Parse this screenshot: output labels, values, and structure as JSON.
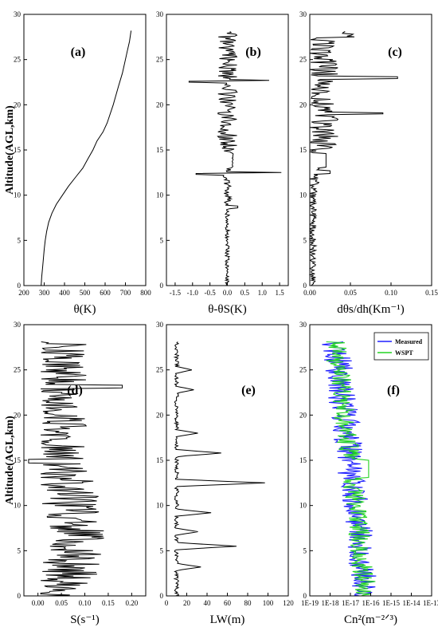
{
  "figure": {
    "y_axis_label": "Altitude(AGL,km)"
  },
  "chart_data": [
    {
      "type": "line",
      "panel_label": "(a)",
      "xlabel": "θ(K)",
      "ylabel": "Altitude(AGL,km)",
      "xlim": [
        200,
        800
      ],
      "ylim": [
        0,
        30
      ],
      "xticks": [
        200,
        300,
        400,
        500,
        600,
        700,
        800
      ],
      "xtick_labels": [
        "200",
        "300",
        "400",
        "500",
        "600",
        "700",
        "800"
      ],
      "yticks": [
        0,
        5,
        10,
        15,
        20,
        25,
        30
      ],
      "series": [
        {
          "color": "#000000",
          "x": [
            285,
            288,
            292,
            296,
            300,
            305,
            312,
            322,
            338,
            360,
            390,
            420,
            455,
            490,
            515,
            540,
            560,
            590,
            610,
            640,
            665,
            685,
            700,
            710,
            720,
            728
          ],
          "y": [
            0,
            1,
            2,
            3,
            4,
            5,
            6,
            7,
            8,
            9,
            10,
            11,
            12,
            13,
            14,
            15,
            16,
            17,
            18,
            20,
            22,
            23.5,
            25,
            26,
            27,
            28.2
          ]
        }
      ]
    },
    {
      "type": "line",
      "panel_label": "(b)",
      "xlabel": "θ-θS(K)",
      "xlim": [
        -1.75,
        1.75
      ],
      "ylim": [
        0,
        30
      ],
      "xticks": [
        -1.5,
        -1.0,
        -0.5,
        0.0,
        0.5,
        1.0,
        1.5
      ],
      "xtick_labels": [
        "-1.5",
        "-1.0",
        "-0.5",
        "0.0",
        "0.5",
        "1.0",
        "1.5"
      ],
      "yticks": [
        0,
        5,
        10,
        15,
        20,
        25,
        30
      ],
      "series": [
        {
          "color": "#000000",
          "generator": "theta_diff"
        }
      ]
    },
    {
      "type": "line",
      "panel_label": "(c)",
      "xlabel": "dθs/dh(Km⁻¹)",
      "xlim": [
        0,
        0.15
      ],
      "ylim": [
        0,
        30
      ],
      "xticks": [
        0,
        0.05,
        0.1,
        0.15
      ],
      "xtick_labels": [
        "0.00",
        "0.05",
        "0.10",
        "0.15"
      ],
      "yticks": [
        0,
        5,
        10,
        15,
        20,
        25,
        30
      ],
      "series": [
        {
          "color": "#000000",
          "generator": "gradient"
        }
      ]
    },
    {
      "type": "line",
      "panel_label": "(d)",
      "xlabel": "S(s⁻¹)",
      "ylabel": "Altitude(AGL,km)",
      "xlim": [
        -0.03,
        0.23
      ],
      "ylim": [
        0,
        30
      ],
      "xticks": [
        0,
        0.05,
        0.1,
        0.15,
        0.2
      ],
      "xtick_labels": [
        "0.00",
        "0.05",
        "0.10",
        "0.15",
        "0.20"
      ],
      "yticks": [
        0,
        5,
        10,
        15,
        20,
        25,
        30
      ],
      "series": [
        {
          "color": "#000000",
          "generator": "shear"
        }
      ]
    },
    {
      "type": "line",
      "panel_label": "(e)",
      "xlabel": "LW(m)",
      "xlim": [
        0,
        120
      ],
      "ylim": [
        0,
        30
      ],
      "xticks": [
        0,
        20,
        40,
        60,
        80,
        100,
        120
      ],
      "xtick_labels": [
        "0",
        "20",
        "40",
        "60",
        "80",
        "100",
        "120"
      ],
      "yticks": [
        0,
        5,
        10,
        15,
        20,
        25,
        30
      ],
      "series": [
        {
          "color": "#000000",
          "generator": "outer_scale"
        }
      ]
    },
    {
      "type": "line",
      "panel_label": "(f)",
      "xlabel": "Cn²(m⁻²ᐟ³)",
      "xlim": [
        -19,
        -13
      ],
      "x_scale": "log10",
      "ylim": [
        0,
        30
      ],
      "xticks": [
        -19,
        -18,
        -17,
        -16,
        -15,
        -14,
        -13
      ],
      "xtick_labels": [
        "1E-19",
        "1E-18",
        "1E-17",
        "1E-16",
        "1E-15",
        "1E-14",
        "1E-13"
      ],
      "yticks": [
        0,
        5,
        10,
        15,
        20,
        25,
        30
      ],
      "legend": {
        "position": "top-right",
        "entries": [
          "Measured",
          "WSPT"
        ]
      },
      "series": [
        {
          "name": "Measured",
          "color": "#1f1fff",
          "generator": "cn2_measured"
        },
        {
          "name": "WSPT",
          "color": "#22d322",
          "generator": "cn2_wspt"
        }
      ]
    }
  ]
}
